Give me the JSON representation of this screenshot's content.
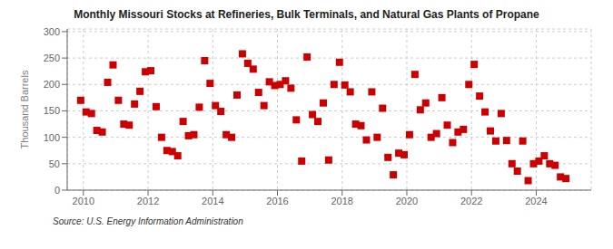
{
  "chart_data": {
    "type": "scatter",
    "title": "Monthly Missouri Stocks at Refineries, Bulk Terminals, and Natural Gas Plants of Propane",
    "ylabel": "Thousand Barrels",
    "annotations": [
      "Source: U.S. Energy Information Administration"
    ],
    "color": "#cc0000",
    "marker": "square",
    "grid": true,
    "xlim": [
      2009.5,
      2025.7
    ],
    "ylim": [
      0,
      305
    ],
    "xticks": [
      2010,
      2012,
      2014,
      2016,
      2018,
      2020,
      2022,
      2024
    ],
    "yticks": [
      0,
      50,
      100,
      150,
      200,
      250,
      300
    ],
    "x": [
      2009.917,
      2010.083,
      2010.25,
      2010.417,
      2010.583,
      2010.75,
      2010.917,
      2011.083,
      2011.25,
      2011.417,
      2011.583,
      2011.75,
      2011.917,
      2012.083,
      2012.25,
      2012.417,
      2012.583,
      2012.75,
      2012.917,
      2013.083,
      2013.25,
      2013.417,
      2013.583,
      2013.75,
      2013.917,
      2014.083,
      2014.25,
      2014.417,
      2014.583,
      2014.75,
      2014.917,
      2015.083,
      2015.25,
      2015.417,
      2015.583,
      2015.75,
      2015.917,
      2016.083,
      2016.25,
      2016.417,
      2016.583,
      2016.75,
      2016.917,
      2017.083,
      2017.25,
      2017.417,
      2017.583,
      2017.75,
      2017.917,
      2018.083,
      2018.25,
      2018.417,
      2018.583,
      2018.75,
      2018.917,
      2019.083,
      2019.25,
      2019.417,
      2019.583,
      2019.75,
      2019.917,
      2020.083,
      2020.25,
      2020.417,
      2020.583,
      2020.75,
      2020.917,
      2021.083,
      2021.25,
      2021.417,
      2021.583,
      2021.75,
      2021.917,
      2022.083,
      2022.25,
      2022.417,
      2022.583,
      2022.75,
      2022.917,
      2023.083,
      2023.25,
      2023.417,
      2023.583,
      2023.75,
      2023.917,
      2024.083,
      2024.25,
      2024.417,
      2024.583,
      2024.75,
      2024.917
    ],
    "values": [
      170,
      148,
      145,
      113,
      110,
      204,
      237,
      170,
      125,
      123,
      163,
      187,
      224,
      226,
      158,
      100,
      75,
      73,
      65,
      130,
      103,
      105,
      157,
      245,
      202,
      160,
      149,
      105,
      100,
      180,
      258,
      240,
      229,
      185,
      160,
      205,
      198,
      200,
      207,
      193,
      133,
      55,
      252,
      143,
      130,
      165,
      57,
      200,
      242,
      199,
      186,
      125,
      122,
      95,
      186,
      100,
      155,
      62,
      29,
      70,
      67,
      105,
      219,
      152,
      165,
      100,
      107,
      175,
      123,
      90,
      110,
      115,
      200,
      238,
      178,
      148,
      112,
      93,
      145,
      94,
      50,
      36,
      93,
      18,
      50,
      55,
      65,
      50,
      47,
      25,
      22
    ]
  }
}
